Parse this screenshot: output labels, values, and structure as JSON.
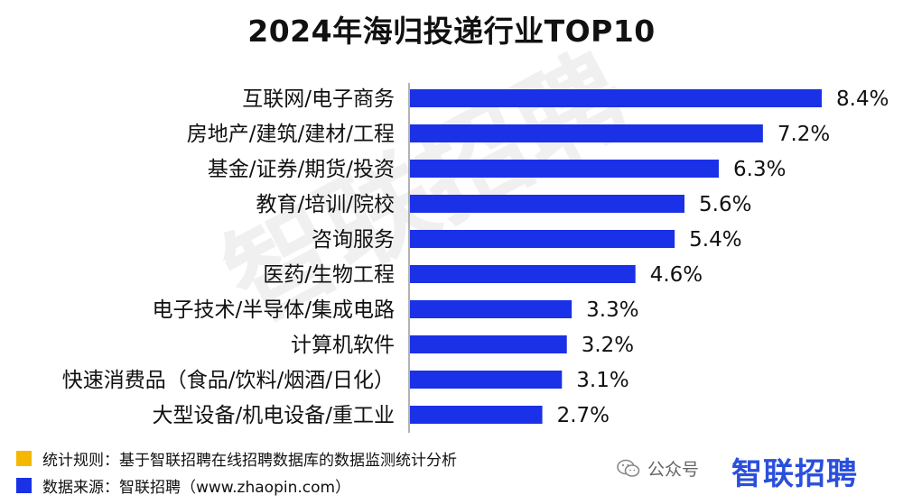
{
  "chart_data": {
    "type": "bar",
    "orientation": "horizontal",
    "title": "2024年海归投递行业TOP10",
    "categories": [
      "互联网/电子商务",
      "房地产/建筑/建材/工程",
      "基金/证券/期货/投资",
      "教育/培训/院校",
      "咨询服务",
      "医药/生物工程",
      "电子技术/半导体/集成电路",
      "计算机软件",
      "快速消费品（食品/饮料/烟酒/日化）",
      "大型设备/机电设备/重工业"
    ],
    "values": [
      8.4,
      7.2,
      6.3,
      5.6,
      5.4,
      4.6,
      3.3,
      3.2,
      3.1,
      2.7
    ],
    "value_labels": [
      "8.4%",
      "7.2%",
      "6.3%",
      "5.6%",
      "5.4%",
      "4.6%",
      "3.3%",
      "3.2%",
      "3.1%",
      "2.7%"
    ],
    "xlim": [
      0,
      8.4
    ],
    "bar_color": "#1a31e8",
    "grid": false,
    "legend": "none"
  },
  "footer": {
    "rule_label": "统计规则：基于智联招聘在线招聘数据库的数据监测统计分析",
    "source_label": "数据来源：智联招聘（www.zhaopin.com）",
    "rule_color": "#f5b800",
    "source_color": "#1a31e8",
    "wechat_label": "公众号",
    "brand": "智联招聘"
  },
  "watermark": "智联招聘"
}
